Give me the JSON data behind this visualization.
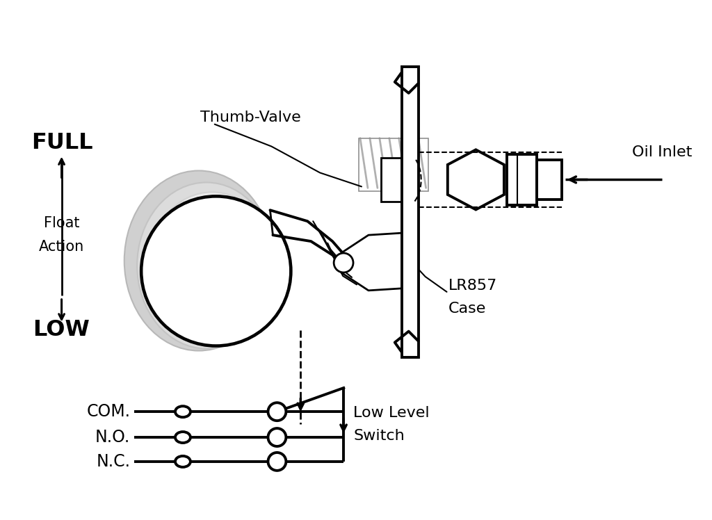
{
  "bg_color": "#ffffff",
  "line_color": "#000000",
  "gray_color": "#aaaaaa",
  "light_gray": "#dddddd",
  "labels": {
    "full": "FULL",
    "low": "LOW",
    "float_action": "Float\nAction",
    "thumb_valve": "Thumb-Valve",
    "oil_inlet": "Oil Inlet",
    "lr857_case": "LR857\nCase",
    "com": "COM.",
    "no": "N.O.",
    "nc": "N.C.",
    "low_level_switch": "Low Level\nSwitch"
  },
  "figsize": [
    10.24,
    7.48
  ],
  "dpi": 100
}
